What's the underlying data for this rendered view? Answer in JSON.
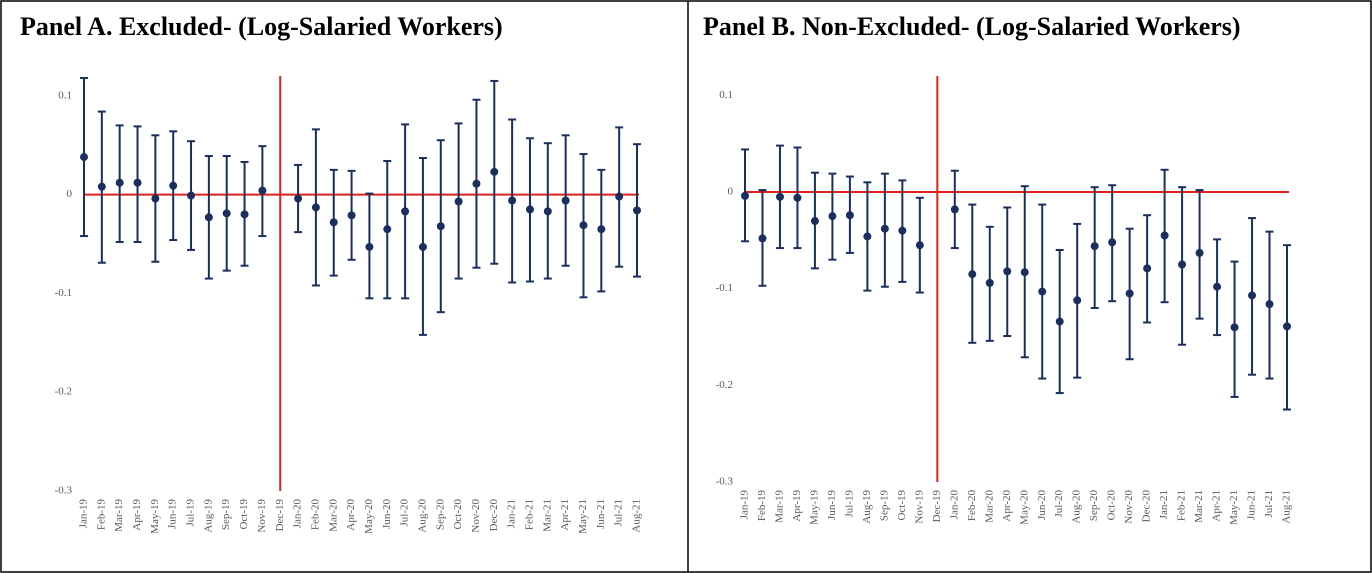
{
  "chart_data": [
    {
      "type": "errorbar",
      "title": "Panel A. Excluded- (Log-Salaried Workers)",
      "categories": [
        "Jan-19",
        "Feb-19",
        "Mar-19",
        "Apr-19",
        "May-19",
        "Jun-19",
        "Jul-19",
        "Aug-19",
        "Sep-19",
        "Oct-19",
        "Nov-19",
        "Dec-19",
        "Jan-20",
        "Feb-20",
        "Mar-20",
        "Apr-20",
        "May-20",
        "Jun-20",
        "Jul-20",
        "Aug-20",
        "Sep-20",
        "Oct-20",
        "Nov-20",
        "Dec-20",
        "Jan-21",
        "Feb-21",
        "Mar-21",
        "Apr-21",
        "May-21",
        "Jun-21",
        "Jul-21",
        "Aug-21"
      ],
      "values": [
        0.038,
        0.008,
        0.012,
        0.012,
        -0.004,
        0.009,
        -0.001,
        -0.023,
        -0.019,
        -0.02,
        0.004,
        null,
        -0.004,
        -0.013,
        -0.028,
        -0.021,
        -0.053,
        -0.035,
        -0.017,
        -0.053,
        -0.032,
        -0.007,
        0.011,
        0.023,
        -0.006,
        -0.015,
        -0.017,
        -0.006,
        -0.031,
        -0.035,
        -0.002,
        -0.016
      ],
      "upper": [
        0.118,
        0.084,
        0.07,
        0.069,
        0.06,
        0.064,
        0.054,
        0.039,
        0.039,
        0.033,
        0.049,
        null,
        0.03,
        0.066,
        0.025,
        0.024,
        0.001,
        0.034,
        0.071,
        0.037,
        0.055,
        0.072,
        0.096,
        0.115,
        0.076,
        0.057,
        0.052,
        0.06,
        0.041,
        0.025,
        0.068,
        0.051
      ],
      "lower": [
        -0.042,
        -0.069,
        -0.048,
        -0.048,
        -0.068,
        -0.046,
        -0.056,
        -0.085,
        -0.077,
        -0.072,
        -0.042,
        null,
        -0.038,
        -0.092,
        -0.082,
        -0.066,
        -0.105,
        -0.105,
        -0.105,
        -0.142,
        -0.119,
        -0.085,
        -0.074,
        -0.07,
        -0.089,
        -0.088,
        -0.085,
        -0.072,
        -0.104,
        -0.098,
        -0.073,
        -0.083
      ],
      "color": "#1b2f5e",
      "ylim": [
        -0.3,
        0.12
      ],
      "yticks": [
        0.1,
        0,
        -0.1,
        -0.2,
        -0.3
      ],
      "hline": 0,
      "vline": "Dec-19",
      "ref_color": "#e0201b"
    },
    {
      "type": "errorbar",
      "title": "Panel B. Non-Excluded- (Log-Salaried Workers)",
      "categories": [
        "Jan-19",
        "Feb-19",
        "Mar-19",
        "Apr-19",
        "May-19",
        "Jun-19",
        "Jul-19",
        "Aug-19",
        "Sep-19",
        "Oct-19",
        "Nov-19",
        "Dec-19",
        "Jan-20",
        "Feb-20",
        "Mar-20",
        "Apr-20",
        "May-20",
        "Jun-20",
        "Jul-20",
        "Aug-20",
        "Sep-20",
        "Oct-20",
        "Nov-20",
        "Dec-20",
        "Jan-21",
        "Feb-21",
        "Mar-21",
        "Apr-21",
        "May-21",
        "Jun-21",
        "Jul-21",
        "Aug-21"
      ],
      "values": [
        -0.004,
        -0.048,
        -0.005,
        -0.006,
        -0.03,
        -0.025,
        -0.024,
        -0.046,
        -0.038,
        -0.04,
        -0.055,
        null,
        -0.018,
        -0.085,
        -0.094,
        -0.082,
        -0.083,
        -0.103,
        -0.134,
        -0.112,
        -0.056,
        -0.052,
        -0.105,
        -0.079,
        -0.045,
        -0.075,
        -0.063,
        -0.098,
        -0.14,
        -0.107,
        -0.116,
        -0.139
      ],
      "upper": [
        0.044,
        0.002,
        0.048,
        0.046,
        0.02,
        0.019,
        0.016,
        0.01,
        0.019,
        0.012,
        -0.006,
        null,
        0.022,
        -0.013,
        -0.036,
        -0.016,
        0.006,
        -0.013,
        -0.06,
        -0.033,
        0.005,
        0.007,
        -0.038,
        -0.024,
        0.023,
        0.005,
        0.002,
        -0.049,
        -0.072,
        -0.027,
        -0.041,
        -0.055
      ],
      "lower": [
        -0.051,
        -0.097,
        -0.058,
        -0.058,
        -0.079,
        -0.07,
        -0.063,
        -0.102,
        -0.098,
        -0.093,
        -0.104,
        null,
        -0.058,
        -0.156,
        -0.154,
        -0.149,
        -0.171,
        -0.193,
        -0.208,
        -0.192,
        -0.12,
        -0.113,
        -0.173,
        -0.135,
        -0.114,
        -0.158,
        -0.131,
        -0.148,
        -0.212,
        -0.189,
        -0.193,
        -0.225
      ],
      "color": "#1b2f5e",
      "ylim": [
        -0.3,
        0.12
      ],
      "yticks": [
        0.1,
        0,
        -0.1,
        -0.2,
        -0.3
      ],
      "hline": 0,
      "vline": "Dec-19",
      "ref_color": "#e0201b"
    }
  ]
}
